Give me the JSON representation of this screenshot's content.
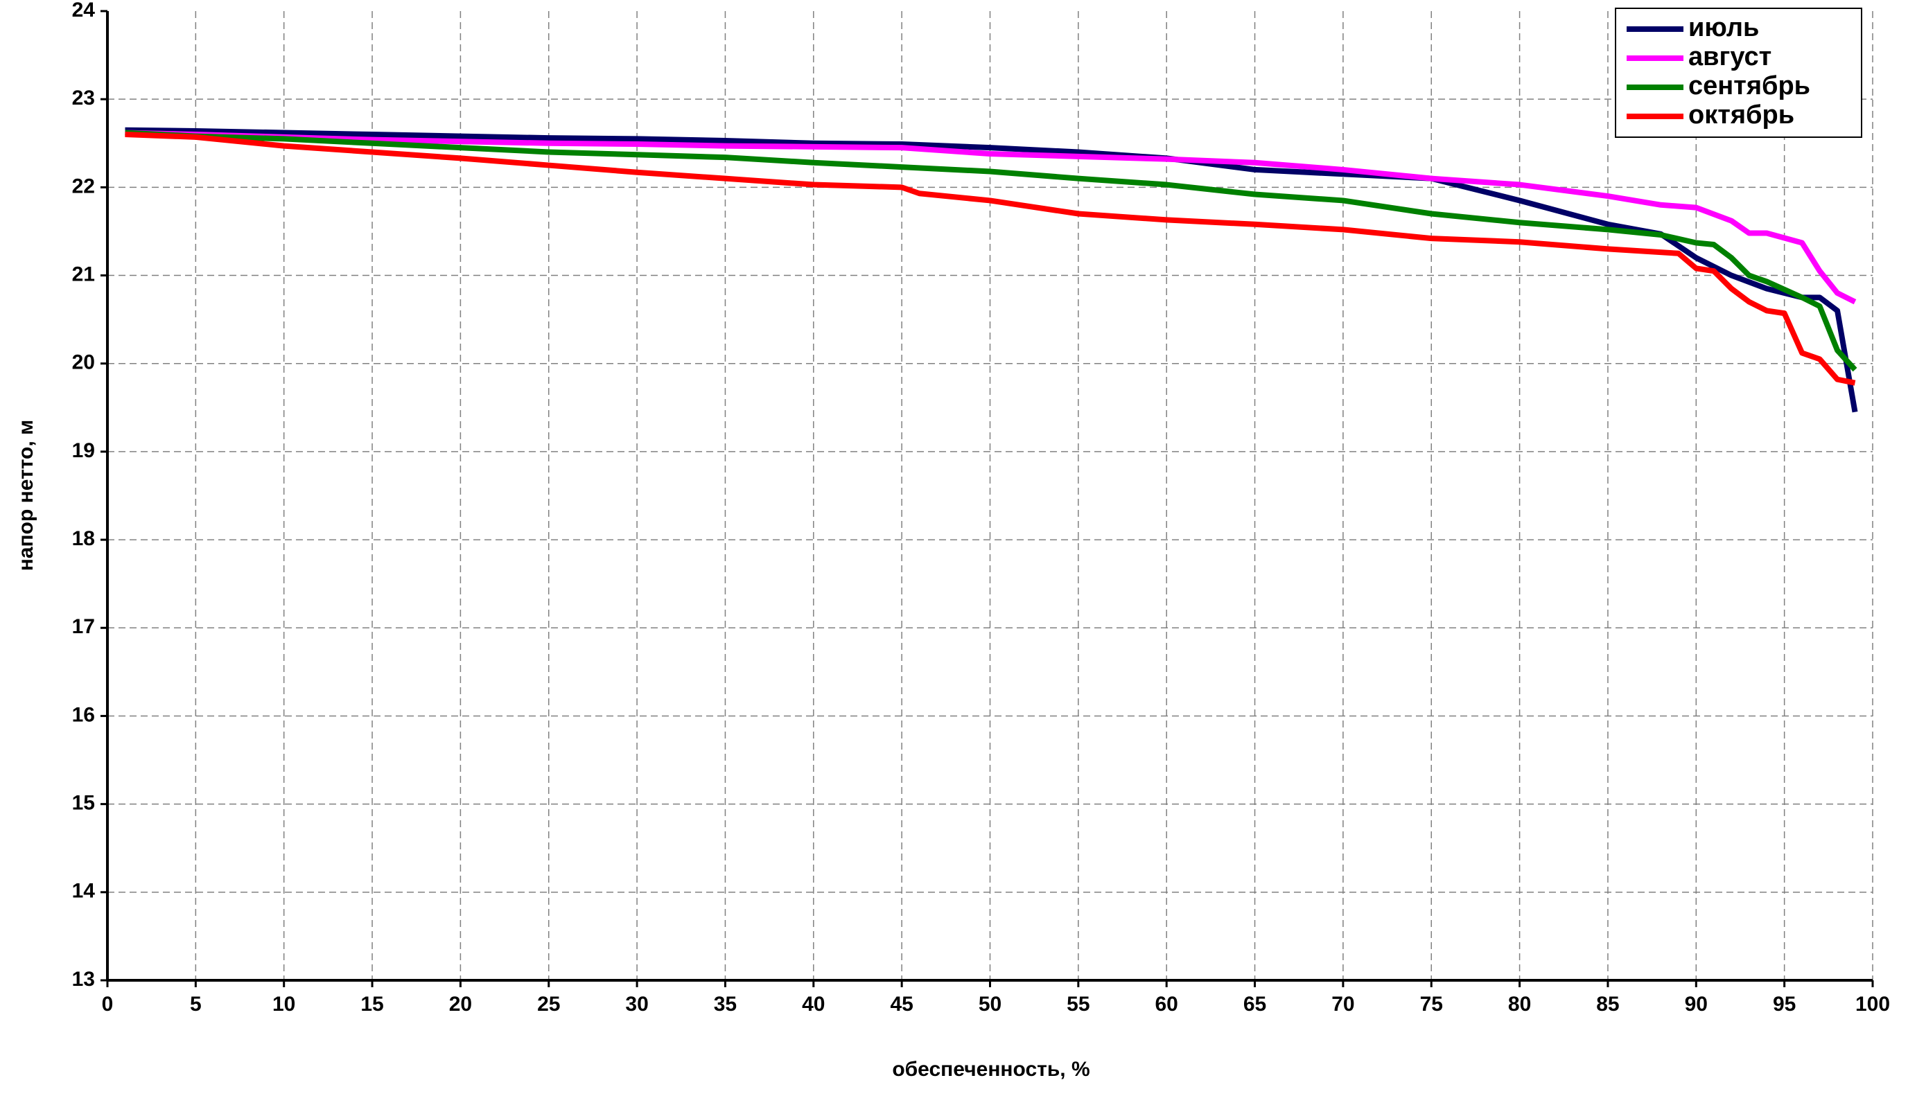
{
  "chart_data": {
    "type": "line",
    "xlabel": "обеспеченность, %",
    "ylabel": "напор нетто, м",
    "xlim": [
      0,
      100
    ],
    "xticks": [
      0,
      5,
      10,
      15,
      20,
      25,
      30,
      35,
      40,
      45,
      50,
      55,
      60,
      65,
      70,
      75,
      80,
      85,
      90,
      95,
      100
    ],
    "ylim": [
      13,
      24
    ],
    "yticks": [
      13,
      14,
      15,
      16,
      17,
      18,
      19,
      20,
      21,
      22,
      23,
      24
    ],
    "grid": true,
    "legend": "top-right",
    "series": [
      {
        "name": "июль",
        "color": "#000066",
        "x": [
          1,
          5,
          10,
          15,
          20,
          25,
          30,
          35,
          40,
          45,
          50,
          55,
          60,
          65,
          70,
          75,
          80,
          85,
          88,
          90,
          92,
          94,
          96,
          97,
          98,
          99
        ],
        "values": [
          22.65,
          22.64,
          22.62,
          22.6,
          22.58,
          22.56,
          22.55,
          22.53,
          22.5,
          22.49,
          22.45,
          22.4,
          22.33,
          22.2,
          22.15,
          22.1,
          21.85,
          21.58,
          21.47,
          21.2,
          21.0,
          20.85,
          20.75,
          20.75,
          20.6,
          19.45
        ]
      },
      {
        "name": "август",
        "color": "#ff00ff",
        "x": [
          1,
          5,
          10,
          15,
          20,
          25,
          30,
          35,
          40,
          45,
          50,
          55,
          60,
          65,
          70,
          75,
          80,
          85,
          88,
          90,
          92,
          93,
          94,
          96,
          97,
          98,
          99
        ],
        "values": [
          22.62,
          22.6,
          22.57,
          22.54,
          22.52,
          22.5,
          22.49,
          22.47,
          22.46,
          22.45,
          22.38,
          22.35,
          22.32,
          22.28,
          22.2,
          22.1,
          22.03,
          21.9,
          21.8,
          21.77,
          21.62,
          21.48,
          21.48,
          21.37,
          21.05,
          20.8,
          20.7
        ]
      },
      {
        "name": "сентябрь",
        "color": "#008000",
        "x": [
          1,
          5,
          10,
          15,
          20,
          25,
          30,
          35,
          40,
          45,
          50,
          55,
          60,
          65,
          70,
          75,
          80,
          85,
          88,
          90,
          91,
          92,
          93,
          94,
          96,
          97,
          98,
          99
        ],
        "values": [
          22.62,
          22.58,
          22.55,
          22.5,
          22.45,
          22.4,
          22.37,
          22.34,
          22.28,
          22.23,
          22.18,
          22.1,
          22.03,
          21.92,
          21.85,
          21.7,
          21.6,
          21.52,
          21.46,
          21.37,
          21.35,
          21.2,
          21.0,
          20.93,
          20.75,
          20.65,
          20.15,
          19.93
        ]
      },
      {
        "name": "октябрь",
        "color": "#ff0000",
        "x": [
          1,
          5,
          10,
          15,
          20,
          25,
          30,
          35,
          40,
          45,
          46,
          50,
          55,
          60,
          65,
          70,
          75,
          80,
          85,
          89,
          90,
          91,
          92,
          93,
          94,
          95,
          96,
          97,
          98,
          99
        ],
        "values": [
          22.6,
          22.57,
          22.47,
          22.4,
          22.33,
          22.25,
          22.17,
          22.1,
          22.03,
          22.0,
          21.93,
          21.85,
          21.7,
          21.63,
          21.58,
          21.52,
          21.42,
          21.38,
          21.3,
          21.25,
          21.08,
          21.05,
          20.85,
          20.7,
          20.6,
          20.57,
          20.12,
          20.05,
          19.82,
          19.78
        ]
      }
    ]
  }
}
